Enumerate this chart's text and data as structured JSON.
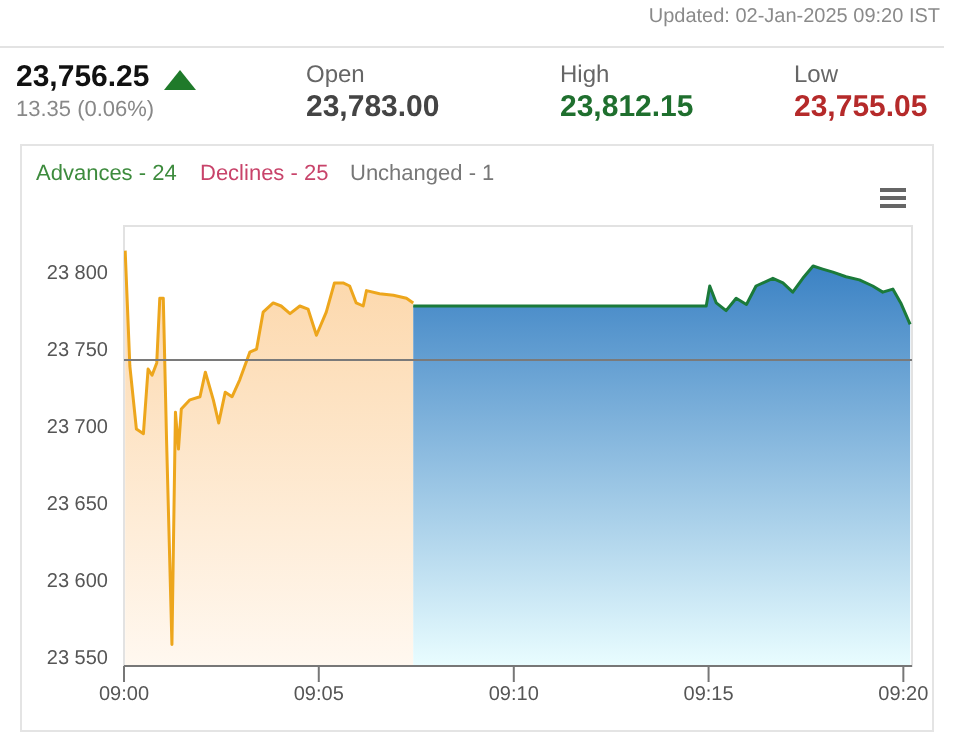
{
  "chart_data": {
    "type": "area",
    "title": "23,756.25",
    "subtitle": "13.35 (0.06%)",
    "annotations": [
      "Updated: 02-Jan-2025 09:20 IST",
      "Open",
      "23,783.00",
      "High",
      "23,812.15",
      "Low",
      "23,755.05",
      "Advances - 24",
      "Declines - 25",
      "Unchanged - 1"
    ],
    "series": [
      {
        "color": "#eda61c",
        "x": [
          9.0005,
          9.0025,
          9.0053,
          9.0083,
          9.0103,
          9.012,
          9.014,
          9.0153,
          9.0168,
          9.0182,
          9.0205,
          9.022,
          9.0233,
          9.0245,
          9.0282,
          9.0325,
          9.0348,
          9.0382,
          9.0405,
          9.0433,
          9.0462,
          9.0495,
          9.0538,
          9.0567,
          9.0595,
          9.0638,
          9.0672,
          9.071,
          9.0752,
          9.0787,
          9.0823,
          9.0865,
          9.09,
          9.0937,
          9.0965,
          9.0993,
          9.1023,
          9.1037,
          9.1093,
          9.1152,
          9.1208,
          9.1237
        ],
        "values": [
          23814,
          23739,
          23698,
          23695,
          23737,
          23733,
          23741,
          23783,
          23783,
          23691,
          23558,
          23709,
          23685,
          23711,
          23717,
          23719,
          23735,
          23717,
          23702,
          23722,
          23719,
          23730,
          23748,
          23750,
          23774,
          23780,
          23778,
          23773,
          23778,
          23776,
          23759,
          23774,
          23793,
          23793,
          23791,
          23780,
          23778,
          23788,
          23786,
          23785,
          23783,
          23780
        ]
      },
      {
        "color": "#1b7a3a",
        "x": [
          9.1237,
          9.249,
          9.2505,
          9.2533,
          9.2575,
          9.2618,
          9.2662,
          9.2703,
          9.2775,
          9.2818,
          9.286,
          9.2903,
          9.2947,
          9.2988,
          9.3032,
          9.3088,
          9.3145,
          9.3202,
          9.3245,
          9.3288,
          9.3322,
          9.3362
        ],
        "values": [
          23778,
          23778,
          23791,
          23780,
          23775,
          23783,
          23779,
          23791,
          23796,
          23793,
          23787,
          23796,
          23804,
          23802,
          23800,
          23797,
          23795,
          23791,
          23787,
          23789,
          23780,
          23766
        ]
      }
    ],
    "xlim": [
      9,
      9.337
    ],
    "xticks": [
      {
        "value": 9,
        "label": "09:00"
      },
      {
        "value": 9.0833,
        "label": "09:05"
      },
      {
        "value": 9.1667,
        "label": "09:10"
      },
      {
        "value": 9.25,
        "label": "09:15"
      },
      {
        "value": 9.3333,
        "label": "09:20"
      }
    ],
    "ylim": [
      23544,
      23830
    ],
    "yticks": [
      {
        "value": 23550,
        "label": "23 550"
      },
      {
        "value": 23600,
        "label": "23 600"
      },
      {
        "value": 23650,
        "label": "23 650"
      },
      {
        "value": 23700,
        "label": "23 700"
      },
      {
        "value": 23750,
        "label": "23 750"
      },
      {
        "value": 23800,
        "label": "23 800"
      }
    ],
    "ref_lines": [
      {
        "axis": "y",
        "value": 23742.9,
        "color": "#7a7a7a"
      }
    ]
  }
}
